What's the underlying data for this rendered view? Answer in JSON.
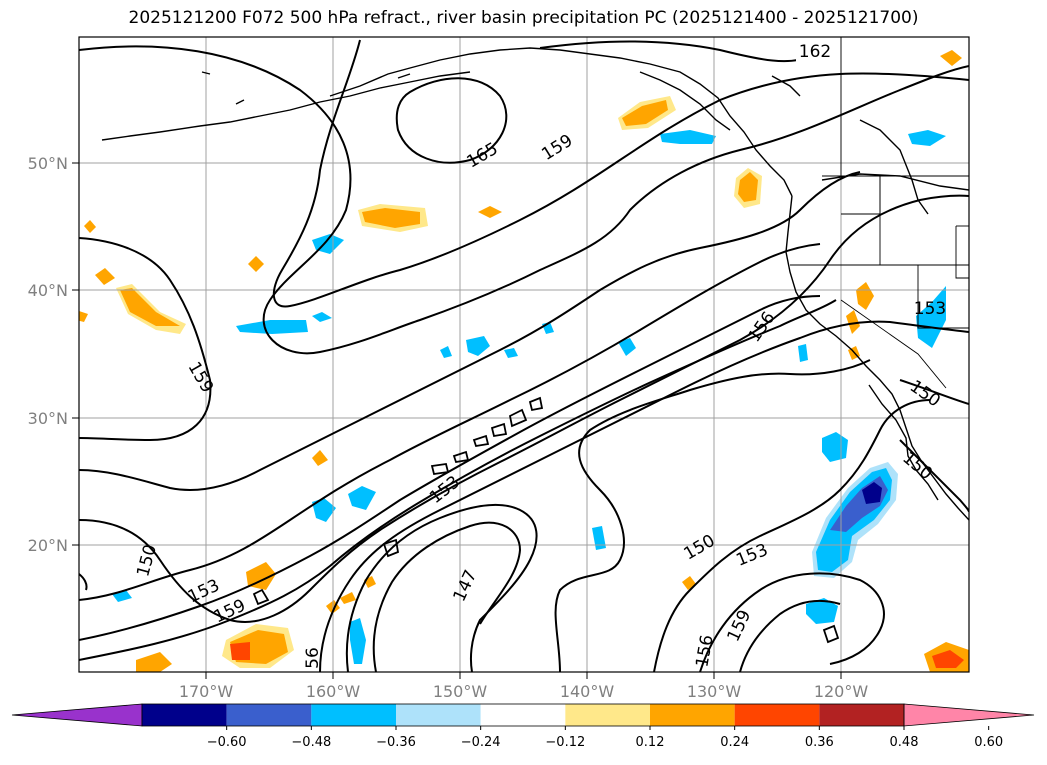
{
  "title": "2025121200 F072 500 hPa refract., river basin precipitation PC (2025121400 - 2025121700)",
  "axes": {
    "lat_labels": [
      "50°N",
      "40°N",
      "30°N",
      "20°N"
    ],
    "lon_labels": [
      "170°W",
      "160°W",
      "150°W",
      "140°W",
      "130°W",
      "120°W"
    ]
  },
  "contour_labels": [
    "162",
    "165",
    "159",
    "159",
    "156",
    "153",
    "150",
    "150",
    "153",
    "147",
    "150",
    "153",
    "159",
    "159",
    "156",
    "56"
  ],
  "colorbar": {
    "tick_labels": [
      "−0.60",
      "−0.48",
      "−0.36",
      "−0.24",
      "−0.12",
      "0.12",
      "0.24",
      "0.36",
      "0.48",
      "0.60"
    ],
    "colors": [
      "#9932cc",
      "#00008b",
      "#3a5fcd",
      "#00bfff",
      "#aee2fa",
      "#ffffff",
      "#ffe88a",
      "#ffa500",
      "#ff4500",
      "#b22222",
      "#ff85a8"
    ]
  },
  "colors": {
    "contour": "#000000",
    "grid": "#a0a0a0",
    "coast": "#000000"
  }
}
